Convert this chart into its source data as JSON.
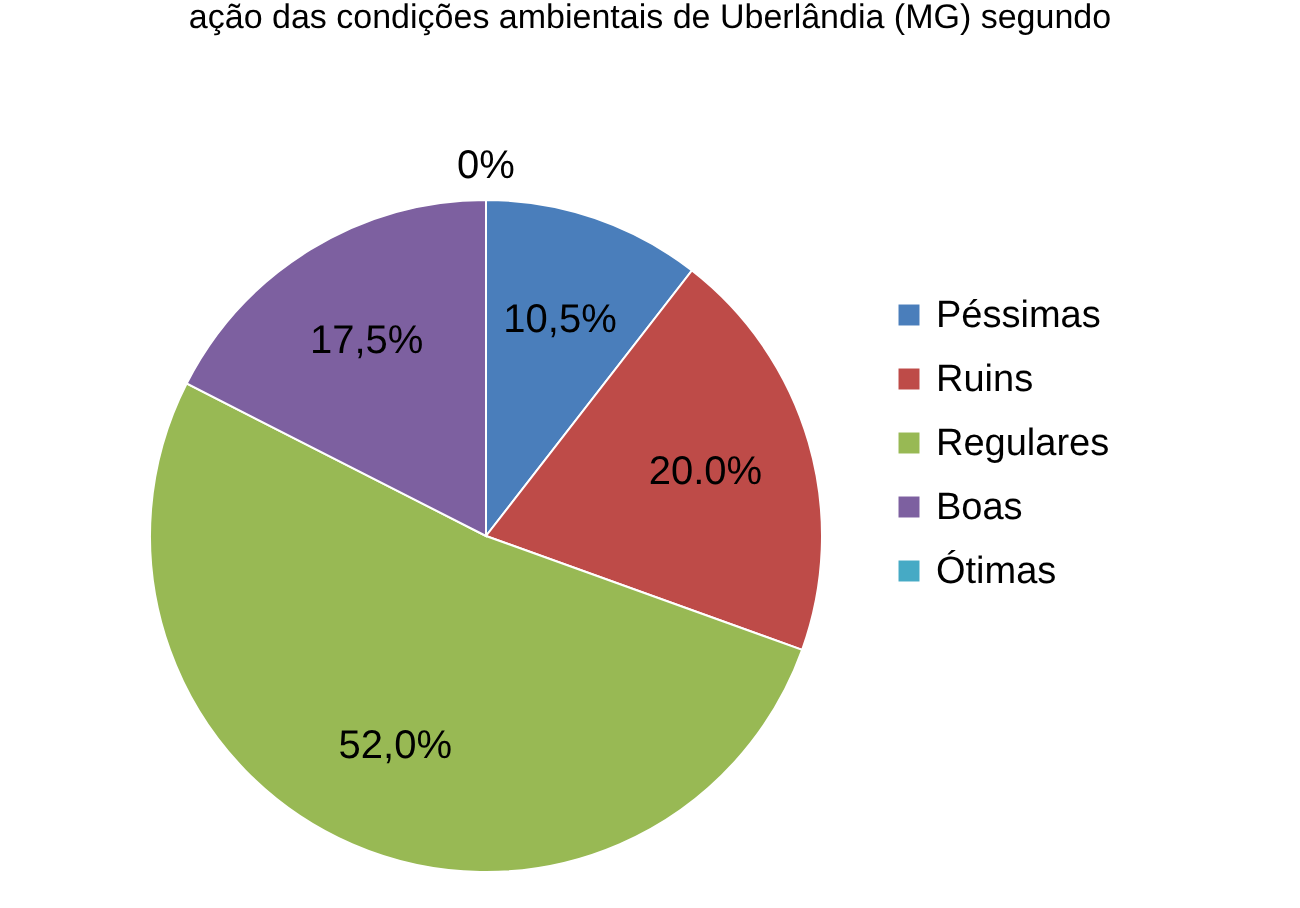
{
  "chart_data": {
    "type": "pie",
    "title": "ação das condições ambientais de Uberlândia (MG) segundo",
    "categories": [
      "Péssimas",
      "Ruins",
      "Regulares",
      "Boas",
      "Ótimas"
    ],
    "values": [
      10.5,
      20.0,
      52.0,
      17.5,
      0
    ],
    "value_labels": [
      "10,5%",
      "20.0%",
      "52,0%",
      "17,5%",
      "0%"
    ],
    "colors": [
      "#4a7ebb",
      "#be4b48",
      "#98b954",
      "#7d60a0",
      "#46aac5"
    ],
    "legend": "right"
  }
}
